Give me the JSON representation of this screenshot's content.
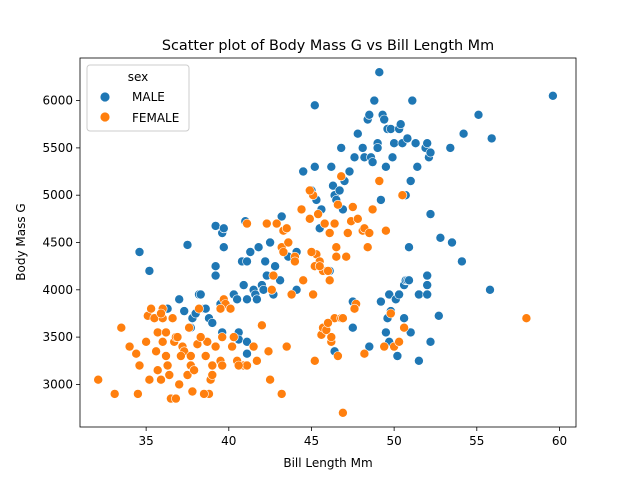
{
  "chart_data": {
    "type": "scatter",
    "title": "Scatter plot of Body Mass G vs Bill Length Mm",
    "xlabel": "Bill Length Mm",
    "ylabel": "Body Mass G",
    "xlim": [
      31,
      61
    ],
    "ylim": [
      2550,
      6450
    ],
    "xticks": [
      35,
      40,
      45,
      50,
      55,
      60
    ],
    "yticks": [
      3000,
      3500,
      4000,
      4500,
      5000,
      5500,
      6000
    ],
    "grid": false,
    "legend": {
      "title": "sex",
      "placement": "top-left"
    },
    "series": [
      {
        "name": "MALE",
        "color": "#1f77b4",
        "points": [
          [
            34.6,
            4400
          ],
          [
            35.2,
            4200
          ],
          [
            36.3,
            3800
          ],
          [
            37.0,
            3900
          ],
          [
            37.3,
            3775
          ],
          [
            37.5,
            4475
          ],
          [
            37.7,
            3600
          ],
          [
            37.8,
            3700
          ],
          [
            38.0,
            3750
          ],
          [
            38.2,
            3950
          ],
          [
            38.3,
            3950
          ],
          [
            38.5,
            3800
          ],
          [
            38.6,
            3800
          ],
          [
            38.8,
            3700
          ],
          [
            39.0,
            3650
          ],
          [
            39.2,
            4675
          ],
          [
            39.2,
            4150
          ],
          [
            39.2,
            4250
          ],
          [
            39.5,
            3850
          ],
          [
            39.6,
            4600
          ],
          [
            39.6,
            3550
          ],
          [
            39.7,
            4450
          ],
          [
            39.7,
            4650
          ],
          [
            40.3,
            3950
          ],
          [
            40.5,
            3900
          ],
          [
            40.6,
            3550
          ],
          [
            40.6,
            3475
          ],
          [
            40.8,
            4300
          ],
          [
            40.9,
            4050
          ],
          [
            41.0,
            4725
          ],
          [
            41.1,
            3900
          ],
          [
            41.1,
            4300
          ],
          [
            41.1,
            3450
          ],
          [
            41.1,
            3325
          ],
          [
            41.3,
            4400
          ],
          [
            41.5,
            4000
          ],
          [
            41.6,
            3950
          ],
          [
            41.7,
            3900
          ],
          [
            41.8,
            4450
          ],
          [
            42.0,
            4050
          ],
          [
            42.1,
            4000
          ],
          [
            42.2,
            4300
          ],
          [
            42.3,
            4150
          ],
          [
            42.5,
            4500
          ],
          [
            42.7,
            3950
          ],
          [
            42.8,
            4250
          ],
          [
            43.1,
            4100
          ],
          [
            43.2,
            4775
          ],
          [
            43.6,
            4350
          ],
          [
            44.1,
            4000
          ],
          [
            44.1,
            4400
          ],
          [
            44.5,
            5250
          ],
          [
            45.0,
            5050
          ],
          [
            45.2,
            5950
          ],
          [
            45.2,
            5300
          ],
          [
            45.3,
            4950
          ],
          [
            45.5,
            4650
          ],
          [
            45.6,
            4850
          ],
          [
            45.8,
            4200
          ],
          [
            46.1,
            4200
          ],
          [
            46.2,
            5300
          ],
          [
            46.3,
            5100
          ],
          [
            46.4,
            5000
          ],
          [
            46.5,
            4950
          ],
          [
            46.7,
            5050
          ],
          [
            46.8,
            5500
          ],
          [
            46.9,
            4850
          ],
          [
            47.0,
            5150
          ],
          [
            47.3,
            5250
          ],
          [
            47.5,
            3600
          ],
          [
            47.6,
            5400
          ],
          [
            47.8,
            5650
          ],
          [
            48.1,
            5500
          ],
          [
            48.2,
            5400
          ],
          [
            48.4,
            5800
          ],
          [
            48.5,
            5850
          ],
          [
            48.6,
            5400
          ],
          [
            48.7,
            5350
          ],
          [
            48.8,
            6000
          ],
          [
            49.0,
            5550
          ],
          [
            49.0,
            5500
          ],
          [
            49.1,
            6300
          ],
          [
            49.2,
            4950
          ],
          [
            49.3,
            5850
          ],
          [
            49.4,
            5800
          ],
          [
            49.5,
            5300
          ],
          [
            49.6,
            5700
          ],
          [
            49.7,
            3950
          ],
          [
            49.8,
            5700
          ],
          [
            49.9,
            5400
          ],
          [
            50.0,
            5550
          ],
          [
            50.1,
            3900
          ],
          [
            50.2,
            3300
          ],
          [
            50.3,
            5700
          ],
          [
            50.4,
            5750
          ],
          [
            50.5,
            5550
          ],
          [
            50.6,
            4050
          ],
          [
            50.7,
            5000
          ],
          [
            50.8,
            5600
          ],
          [
            50.9,
            4450
          ],
          [
            51.0,
            5150
          ],
          [
            51.1,
            6000
          ],
          [
            51.3,
            5550
          ],
          [
            51.4,
            5300
          ],
          [
            51.5,
            3250
          ],
          [
            51.9,
            5500
          ],
          [
            52.0,
            5550
          ],
          [
            52.1,
            5400
          ],
          [
            52.2,
            5450
          ],
          [
            52.7,
            3725
          ],
          [
            52.8,
            4550
          ],
          [
            53.4,
            5500
          ],
          [
            53.5,
            4500
          ],
          [
            54.2,
            5650
          ],
          [
            55.1,
            5850
          ],
          [
            55.8,
            4000
          ],
          [
            55.9,
            5600
          ],
          [
            59.6,
            6050
          ],
          [
            48.5,
            3400
          ],
          [
            49.2,
            3875
          ],
          [
            49.5,
            3550
          ],
          [
            49.7,
            3450
          ],
          [
            49.8,
            3775
          ],
          [
            50.3,
            3950
          ],
          [
            50.6,
            3700
          ],
          [
            50.7,
            4100
          ],
          [
            50.8,
            4100
          ],
          [
            51.0,
            3550
          ],
          [
            51.5,
            3950
          ],
          [
            52.0,
            4150
          ],
          [
            52.0,
            4050
          ],
          [
            52.0,
            3950
          ],
          [
            50.9,
            4100
          ],
          [
            49.6,
            3700
          ],
          [
            47.5,
            3875
          ],
          [
            46.4,
            3350
          ],
          [
            54.1,
            4300
          ],
          [
            52.2,
            4800
          ],
          [
            53.5,
            4500
          ],
          [
            52.2,
            3450
          ]
        ]
      },
      {
        "name": "FEMALE",
        "color": "#ff7f0e",
        "points": [
          [
            32.1,
            3050
          ],
          [
            33.1,
            2900
          ],
          [
            33.5,
            3600
          ],
          [
            34.0,
            3400
          ],
          [
            34.4,
            3325
          ],
          [
            34.5,
            2900
          ],
          [
            34.6,
            3200
          ],
          [
            35.0,
            3450
          ],
          [
            35.1,
            3725
          ],
          [
            35.2,
            3050
          ],
          [
            35.3,
            3800
          ],
          [
            35.5,
            3700
          ],
          [
            35.6,
            3350
          ],
          [
            35.7,
            3150
          ],
          [
            35.7,
            3550
          ],
          [
            35.9,
            3050
          ],
          [
            36.0,
            3450
          ],
          [
            36.0,
            3700
          ],
          [
            36.0,
            3800
          ],
          [
            36.2,
            3300
          ],
          [
            36.2,
            3550
          ],
          [
            36.4,
            3100
          ],
          [
            36.5,
            2850
          ],
          [
            36.6,
            3700
          ],
          [
            36.7,
            3450
          ],
          [
            36.8,
            3500
          ],
          [
            36.9,
            3500
          ],
          [
            37.0,
            3000
          ],
          [
            37.2,
            3400
          ],
          [
            37.3,
            3350
          ],
          [
            37.5,
            3100
          ],
          [
            37.6,
            3600
          ],
          [
            37.7,
            3200
          ],
          [
            37.8,
            2925
          ],
          [
            37.9,
            3150
          ],
          [
            38.1,
            3425
          ],
          [
            38.2,
            3800
          ],
          [
            38.6,
            3300
          ],
          [
            38.7,
            3450
          ],
          [
            38.8,
            2900
          ],
          [
            38.9,
            3050
          ],
          [
            39.0,
            3200
          ],
          [
            39.2,
            3400
          ],
          [
            39.5,
            3250
          ],
          [
            39.6,
            3200
          ],
          [
            39.6,
            3500
          ],
          [
            39.7,
            3900
          ],
          [
            39.8,
            3850
          ],
          [
            40.2,
            3400
          ],
          [
            40.3,
            3500
          ],
          [
            40.5,
            3250
          ],
          [
            40.9,
            3200
          ],
          [
            41.1,
            3200
          ],
          [
            41.5,
            3400
          ],
          [
            42.0,
            3625
          ],
          [
            42.4,
            3350
          ],
          [
            42.5,
            3050
          ],
          [
            42.7,
            4150
          ],
          [
            42.9,
            4700
          ],
          [
            43.2,
            4450
          ],
          [
            43.3,
            4400
          ],
          [
            43.3,
            4625
          ],
          [
            43.5,
            4650
          ],
          [
            44.0,
            4350
          ],
          [
            44.5,
            4100
          ],
          [
            44.9,
            4750
          ],
          [
            45.1,
            5000
          ],
          [
            45.2,
            3250
          ],
          [
            45.3,
            4375
          ],
          [
            45.4,
            4800
          ],
          [
            45.5,
            4300
          ],
          [
            45.7,
            4200
          ],
          [
            45.8,
            4700
          ],
          [
            46.0,
            4200
          ],
          [
            46.1,
            4600
          ],
          [
            46.2,
            3450
          ],
          [
            46.4,
            4700
          ],
          [
            46.5,
            4450
          ],
          [
            46.6,
            4900
          ],
          [
            46.8,
            5200
          ],
          [
            46.9,
            2700
          ],
          [
            47.2,
            4600
          ],
          [
            47.4,
            4725
          ],
          [
            47.5,
            4875
          ],
          [
            47.7,
            3850
          ],
          [
            48.1,
            4625
          ],
          [
            48.2,
            4650
          ],
          [
            48.4,
            4450
          ],
          [
            48.5,
            4600
          ],
          [
            48.7,
            4850
          ],
          [
            49.1,
            5150
          ],
          [
            49.5,
            4625
          ],
          [
            49.8,
            3750
          ],
          [
            50.0,
            3400
          ],
          [
            50.3,
            3450
          ],
          [
            50.5,
            5000
          ],
          [
            50.6,
            3600
          ],
          [
            58.0,
            3700
          ],
          [
            45.2,
            4250
          ],
          [
            45.6,
            3525
          ],
          [
            46.4,
            3700
          ],
          [
            46.8,
            3700
          ],
          [
            45.7,
            3600
          ],
          [
            46.2,
            3500
          ],
          [
            45.9,
            3575
          ],
          [
            46.6,
            3300
          ],
          [
            45.1,
            3950
          ],
          [
            44.0,
            4300
          ],
          [
            42.6,
            4000
          ],
          [
            43.2,
            2900
          ],
          [
            43.5,
            3400
          ],
          [
            45.5,
            4250
          ],
          [
            46.0,
            3650
          ],
          [
            46.9,
            3700
          ],
          [
            47.6,
            3800
          ],
          [
            48.2,
            3325
          ],
          [
            49.4,
            3400
          ],
          [
            47.1,
            4350
          ],
          [
            46.1,
            4100
          ],
          [
            44.9,
            5050
          ],
          [
            43.8,
            3950
          ],
          [
            41.7,
            3250
          ],
          [
            40.6,
            3200
          ],
          [
            39.0,
            3100
          ],
          [
            38.5,
            2900
          ],
          [
            37.1,
            3300
          ],
          [
            36.3,
            3200
          ],
          [
            35.9,
            3750
          ],
          [
            36.8,
            2850
          ],
          [
            37.7,
            3300
          ],
          [
            38.3,
            3500
          ],
          [
            39.5,
            3800
          ],
          [
            40.1,
            3800
          ],
          [
            41.1,
            4700
          ],
          [
            42.3,
            4700
          ],
          [
            43.6,
            4500
          ],
          [
            44.4,
            4850
          ],
          [
            45.0,
            4400
          ],
          [
            46.5,
            4350
          ],
          [
            47.8,
            4750
          ]
        ]
      }
    ]
  }
}
